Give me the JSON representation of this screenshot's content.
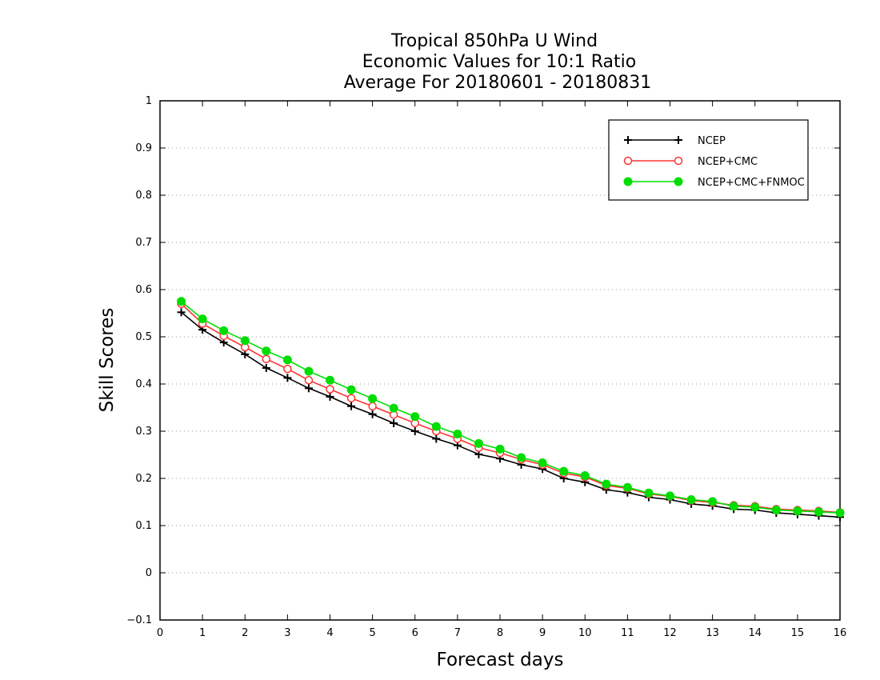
{
  "chart_data": {
    "type": "line",
    "title_lines": [
      "Tropical 850hPa U Wind",
      "Economic Values for 10:1 Ratio",
      "Average For 20180601 - 20180831"
    ],
    "xlabel": "Forecast days",
    "ylabel": "Skill Scores",
    "xlim": [
      0,
      16
    ],
    "ylim": [
      -0.1,
      1
    ],
    "x_ticks": [
      "0",
      "1",
      "2",
      "3",
      "4",
      "5",
      "6",
      "7",
      "8",
      "9",
      "10",
      "11",
      "12",
      "13",
      "14",
      "15",
      "16"
    ],
    "y_ticks": [
      "−0.1",
      "0",
      "0.1",
      "0.2",
      "0.3",
      "0.4",
      "0.5",
      "0.6",
      "0.7",
      "0.8",
      "0.9",
      "1"
    ],
    "grid": "horizontal dotted",
    "legend_position": "top-right",
    "x": [
      0.5,
      1,
      1.5,
      2,
      2.5,
      3,
      3.5,
      4,
      4.5,
      5,
      5.5,
      6,
      6.5,
      7,
      7.5,
      8,
      8.5,
      9,
      9.5,
      10,
      10.5,
      11,
      11.5,
      12,
      12.5,
      13,
      13.5,
      14,
      14.5,
      15,
      15.5,
      16
    ],
    "series": [
      {
        "name": "NCEP",
        "color": "#000000",
        "marker": "plus",
        "values": [
          0.552,
          0.515,
          0.488,
          0.463,
          0.434,
          0.413,
          0.391,
          0.373,
          0.353,
          0.336,
          0.317,
          0.3,
          0.284,
          0.27,
          0.251,
          0.242,
          0.229,
          0.22,
          0.2,
          0.192,
          0.176,
          0.17,
          0.16,
          0.155,
          0.146,
          0.142,
          0.135,
          0.133,
          0.127,
          0.124,
          0.121,
          0.118
        ]
      },
      {
        "name": "NCEP+CMC",
        "color": "#ff3333",
        "marker": "open-circle",
        "values": [
          0.57,
          0.528,
          0.502,
          0.478,
          0.453,
          0.432,
          0.408,
          0.389,
          0.37,
          0.353,
          0.335,
          0.317,
          0.3,
          0.284,
          0.265,
          0.254,
          0.24,
          0.229,
          0.211,
          0.203,
          0.185,
          0.179,
          0.167,
          0.162,
          0.153,
          0.149,
          0.143,
          0.141,
          0.135,
          0.133,
          0.131,
          0.128
        ]
      },
      {
        "name": "NCEP+CMC+FNMOC",
        "color": "#00dd00",
        "marker": "filled-circle",
        "values": [
          0.575,
          0.538,
          0.513,
          0.492,
          0.47,
          0.451,
          0.427,
          0.408,
          0.388,
          0.369,
          0.349,
          0.331,
          0.31,
          0.294,
          0.274,
          0.262,
          0.244,
          0.233,
          0.215,
          0.206,
          0.188,
          0.181,
          0.169,
          0.163,
          0.155,
          0.151,
          0.141,
          0.139,
          0.133,
          0.131,
          0.129,
          0.127
        ]
      }
    ]
  }
}
